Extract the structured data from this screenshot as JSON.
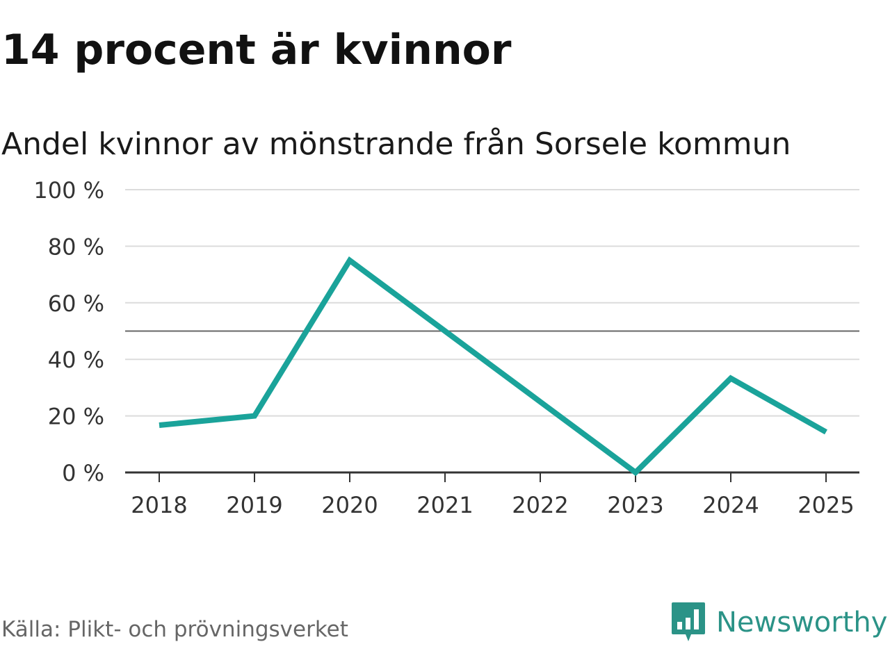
{
  "title": "14 procent är kvinnor",
  "subtitle": "Andel kvinnor av mönstrande från Sorsele kommun",
  "source": "Källa: Plikt- och prövningsverket",
  "brand": {
    "name": "Newsworthy",
    "icon": "newsworthy-logo-icon",
    "color": "#2b9387"
  },
  "chart_data": {
    "type": "line",
    "x": [
      "2018",
      "2019",
      "2020",
      "2021",
      "2022",
      "2023",
      "2024",
      "2025"
    ],
    "series": [
      {
        "values": [
          16.7,
          20,
          75,
          50,
          25,
          0,
          33.3,
          14.3
        ],
        "color": "#1aa39a"
      }
    ],
    "y_ticks": [
      0,
      20,
      40,
      60,
      80,
      100
    ],
    "y_tick_labels": [
      "0 %",
      "20 %",
      "40 %",
      "60 %",
      "80 %",
      "100 %"
    ],
    "ylim": [
      0,
      100
    ],
    "reference_line": 50,
    "grid": true,
    "legend": "none"
  }
}
